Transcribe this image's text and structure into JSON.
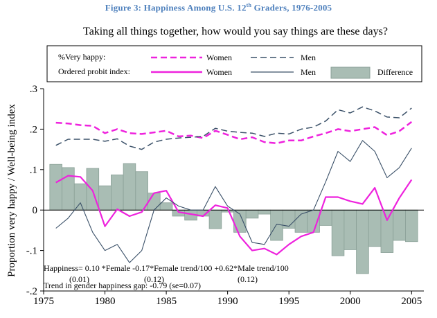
{
  "figure": {
    "title_prefix": "Figure 3: Happiness Among U.S. 12",
    "title_sup": "th",
    "title_suffix": " Graders, 1976-2005"
  },
  "chart_data": {
    "type": "line",
    "title": "Taking all things together, how would you say things are these days?",
    "ylabel": "Proportion very happy / Well-being index",
    "xlabel": "",
    "xlim": [
      1975,
      2006
    ],
    "ylim": [
      -0.2,
      0.3
    ],
    "xticks": [
      1975,
      1980,
      1985,
      1990,
      1995,
      2000,
      2005
    ],
    "yticks": [
      -0.2,
      -0.1,
      0,
      0.1,
      0.2,
      0.3
    ],
    "ytick_labels": [
      "-.2",
      "-.1",
      "0",
      ".1",
      ".2",
      ".3"
    ],
    "legend": {
      "row1_label": "%Very happy:",
      "row2_label": "Ordered probit index:",
      "women": "Women",
      "men": "Men",
      "difference": "Difference"
    },
    "x": [
      1976,
      1977,
      1978,
      1979,
      1980,
      1981,
      1982,
      1983,
      1984,
      1985,
      1986,
      1987,
      1988,
      1989,
      1990,
      1991,
      1992,
      1993,
      1994,
      1995,
      1996,
      1997,
      1998,
      1999,
      2000,
      2001,
      2002,
      2003,
      2004,
      2005
    ],
    "series": [
      {
        "name": "%Very happy: Women",
        "style": "dashed",
        "color": "#ee22dd",
        "values": [
          0.216,
          0.214,
          0.21,
          0.208,
          0.19,
          0.2,
          0.19,
          0.188,
          0.192,
          0.196,
          0.182,
          0.184,
          0.178,
          0.196,
          0.186,
          0.175,
          0.18,
          0.168,
          0.165,
          0.172,
          0.172,
          0.182,
          0.19,
          0.2,
          0.195,
          0.2,
          0.205,
          0.185,
          0.195,
          0.218
        ]
      },
      {
        "name": "%Very happy: Men",
        "style": "dashed",
        "color": "#3a5068",
        "values": [
          0.16,
          0.175,
          0.175,
          0.175,
          0.17,
          0.176,
          0.158,
          0.15,
          0.168,
          0.175,
          0.178,
          0.18,
          0.182,
          0.202,
          0.195,
          0.192,
          0.19,
          0.182,
          0.19,
          0.188,
          0.2,
          0.205,
          0.22,
          0.248,
          0.24,
          0.255,
          0.245,
          0.23,
          0.228,
          0.252
        ]
      },
      {
        "name": "Ordered probit index: Women",
        "style": "solid",
        "color": "#ee22dd",
        "values": [
          0.068,
          0.085,
          0.082,
          0.048,
          -0.04,
          0.002,
          -0.015,
          -0.005,
          0.042,
          0.048,
          -0.005,
          -0.01,
          -0.015,
          0.012,
          0.005,
          -0.065,
          -0.1,
          -0.095,
          -0.11,
          -0.085,
          -0.065,
          -0.055,
          0.032,
          0.032,
          0.022,
          0.015,
          0.055,
          -0.025,
          0.03,
          0.075
        ]
      },
      {
        "name": "Ordered probit index: Men",
        "style": "solid",
        "color": "#3a5068",
        "values": [
          -0.045,
          -0.02,
          0.018,
          -0.055,
          -0.1,
          -0.085,
          -0.13,
          -0.1,
          0.0,
          0.03,
          0.01,
          0.0,
          0.0,
          0.058,
          0.01,
          -0.01,
          -0.08,
          -0.085,
          -0.035,
          -0.04,
          -0.01,
          0.0,
          0.07,
          0.145,
          0.12,
          0.172,
          0.145,
          0.08,
          0.105,
          0.153
        ]
      }
    ],
    "difference": {
      "name": "Difference",
      "color": "#a9bdb4",
      "values": [
        0.113,
        0.105,
        0.065,
        0.103,
        0.06,
        0.087,
        0.115,
        0.095,
        0.042,
        0.018,
        -0.015,
        -0.025,
        -0.015,
        -0.046,
        -0.005,
        -0.055,
        -0.02,
        -0.01,
        -0.075,
        -0.045,
        -0.055,
        -0.055,
        -0.038,
        -0.113,
        -0.098,
        -0.157,
        -0.09,
        -0.105,
        -0.075,
        -0.078
      ]
    },
    "annotations": {
      "line1": "Happiness= 0.10 *Female -0.17*Female trend/100 +0.62*Male trend/100",
      "se1": "(0.01)",
      "se2": "(0.12)",
      "se3": "(0.12)",
      "line2": "Trend in gender happiness gap: -0.79  (se=0.07)"
    }
  }
}
